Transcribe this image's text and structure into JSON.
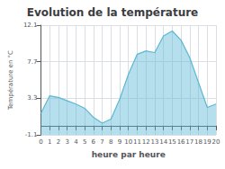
{
  "chart_data": {
    "type": "area",
    "title": "Evolution de la température",
    "xlabel": "heure par heure",
    "ylabel": "Température en °C",
    "x": [
      0,
      1,
      2,
      3,
      4,
      5,
      6,
      7,
      8,
      9,
      10,
      11,
      12,
      13,
      14,
      15,
      16,
      17,
      18,
      19,
      20
    ],
    "values": [
      1.5,
      3.6,
      3.4,
      3.0,
      2.6,
      2.1,
      1.0,
      0.3,
      0.8,
      3.2,
      6.2,
      8.6,
      9.0,
      8.8,
      10.8,
      11.4,
      10.3,
      8.2,
      5.2,
      2.2,
      2.6
    ],
    "color": "#5ab8d4",
    "xlim": [
      0,
      20
    ],
    "xticks": [
      0,
      1,
      2,
      3,
      4,
      5,
      6,
      7,
      8,
      9,
      10,
      11,
      12,
      13,
      14,
      15,
      16,
      17,
      18,
      19,
      20
    ],
    "ylim": [
      -1.1,
      12.1
    ],
    "yticks": [
      -1.1,
      3.3,
      7.7,
      12.1
    ],
    "grid": true
  }
}
